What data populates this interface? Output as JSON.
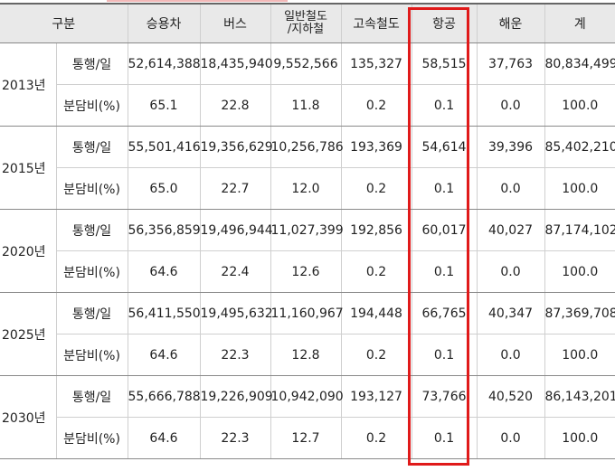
{
  "header": [
    "구분",
    "승용차",
    "버스",
    "일반철도\n/지하철",
    "고속철도",
    "항공",
    "해운",
    "계"
  ],
  "header_lines": {
    "rail_line1": "일반철도",
    "rail_line2": "/지하철"
  },
  "rows": [
    {
      "year": "2013년",
      "trips": {
        "label": "통행/일",
        "values": [
          "52,614,388",
          "18,435,940",
          "9,552,566",
          "135,327",
          "58,515",
          "37,763",
          "80,834,499"
        ]
      },
      "share": {
        "label": "분담비(%)",
        "values": [
          "65.1",
          "22.8",
          "11.8",
          "0.2",
          "0.1",
          "0.0",
          "100.0"
        ]
      }
    },
    {
      "year": "2015년",
      "trips": {
        "label": "통행/일",
        "values": [
          "55,501,416",
          "19,356,629",
          "10,256,786",
          "193,369",
          "54,614",
          "39,396",
          "85,402,210"
        ]
      },
      "share": {
        "label": "분담비(%)",
        "values": [
          "65.0",
          "22.7",
          "12.0",
          "0.2",
          "0.1",
          "0.0",
          "100.0"
        ]
      }
    },
    {
      "year": "2020년",
      "trips": {
        "label": "통행/일",
        "values": [
          "56,356,859",
          "19,496,944",
          "11,027,399",
          "192,856",
          "60,017",
          "40,027",
          "87,174,102"
        ]
      },
      "share": {
        "label": "분담비(%)",
        "values": [
          "64.6",
          "22.4",
          "12.6",
          "0.2",
          "0.1",
          "0.0",
          "100.0"
        ]
      }
    },
    {
      "year": "2025년",
      "trips": {
        "label": "통행/일",
        "values": [
          "56,411,550",
          "19,495,632",
          "11,160,967",
          "194,448",
          "66,765",
          "40,347",
          "87,369,708"
        ]
      },
      "share": {
        "label": "분담비(%)",
        "values": [
          "64.6",
          "22.3",
          "12.8",
          "0.2",
          "0.1",
          "0.0",
          "100.0"
        ]
      }
    },
    {
      "year": "2030년",
      "trips": {
        "label": "통행/일",
        "values": [
          "55,666,788",
          "19,226,909",
          "10,942,090",
          "193,127",
          "73,766",
          "40,520",
          "86,143,201"
        ]
      },
      "share": {
        "label": "분담비(%)",
        "values": [
          "64.6",
          "22.3",
          "12.7",
          "0.2",
          "0.1",
          "0.0",
          "100.0"
        ]
      }
    }
  ],
  "highlight_color": "#e01a1a"
}
